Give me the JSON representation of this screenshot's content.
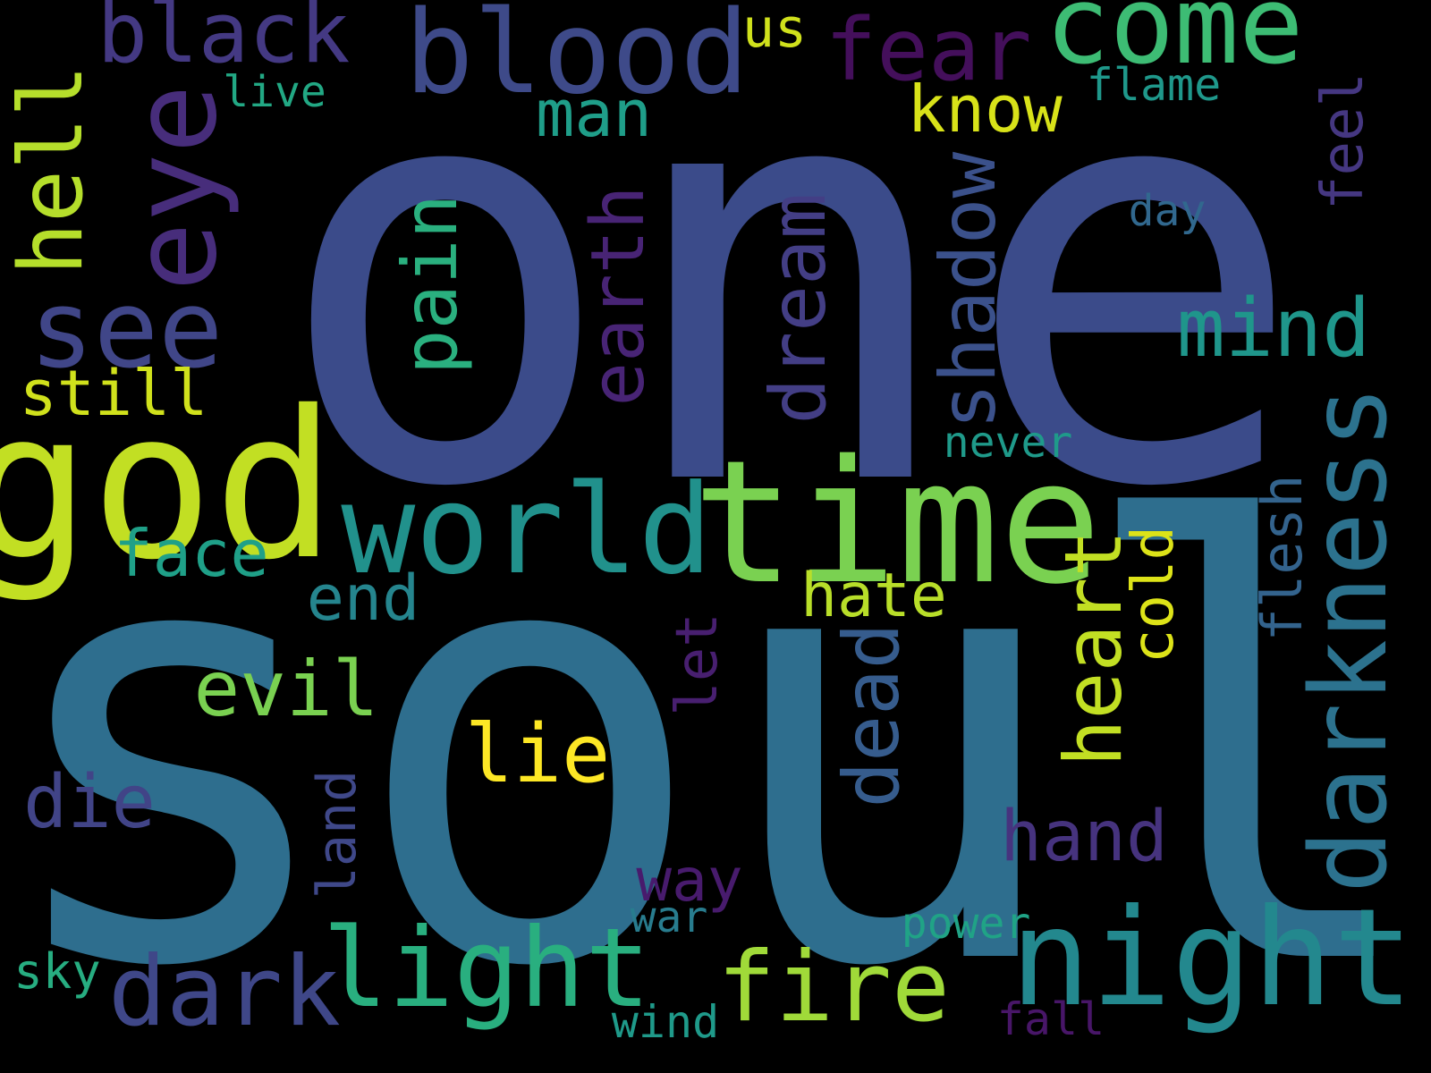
{
  "background_color": "#000000",
  "colormap": "viridis",
  "words": [
    {
      "id": "one",
      "text": "one",
      "color": "#3b4b8a",
      "vertical": false
    },
    {
      "id": "soul",
      "text": "soul",
      "color": "#2e6e8e",
      "vertical": false
    },
    {
      "id": "god",
      "text": "god",
      "color": "#c2df23",
      "vertical": false
    },
    {
      "id": "time",
      "text": "time",
      "color": "#7ad151",
      "vertical": false
    },
    {
      "id": "world",
      "text": "world",
      "color": "#21918c",
      "vertical": false
    },
    {
      "id": "night",
      "text": "night",
      "color": "#23888e",
      "vertical": false
    },
    {
      "id": "blood",
      "text": "blood",
      "color": "#3e4a89",
      "vertical": false
    },
    {
      "id": "come",
      "text": "come",
      "color": "#3dbc74",
      "vertical": false
    },
    {
      "id": "eye",
      "text": "eye",
      "color": "#472d7b",
      "vertical": true
    },
    {
      "id": "darkness",
      "text": "darkness",
      "color": "#2c728e",
      "vertical": true
    },
    {
      "id": "see",
      "text": "see",
      "color": "#404688",
      "vertical": false
    },
    {
      "id": "light",
      "text": "light",
      "color": "#29af7f",
      "vertical": false
    },
    {
      "id": "dark",
      "text": "dark",
      "color": "#3f4788",
      "vertical": false
    },
    {
      "id": "fire",
      "text": "fire",
      "color": "#a0da39",
      "vertical": false
    },
    {
      "id": "black",
      "text": "black",
      "color": "#443983",
      "vertical": false
    },
    {
      "id": "fear",
      "text": "fear",
      "color": "#440f5b",
      "vertical": false
    },
    {
      "id": "hell",
      "text": "hell",
      "color": "#b5de2b",
      "vertical": true
    },
    {
      "id": "mind",
      "text": "mind",
      "color": "#1f968b",
      "vertical": false
    },
    {
      "id": "heart",
      "text": "heart",
      "color": "#c2df23",
      "vertical": true
    },
    {
      "id": "dream",
      "text": "dream",
      "color": "#433e85",
      "vertical": true
    },
    {
      "id": "shadow",
      "text": "shadow",
      "color": "#3b518b",
      "vertical": true
    },
    {
      "id": "pain",
      "text": "pain",
      "color": "#2ab07f",
      "vertical": true
    },
    {
      "id": "earth",
      "text": "earth",
      "color": "#482475",
      "vertical": true
    },
    {
      "id": "dead",
      "text": "dead",
      "color": "#365c8d",
      "vertical": true
    },
    {
      "id": "lie",
      "text": "lie",
      "color": "#fde725",
      "vertical": false
    },
    {
      "id": "evil",
      "text": "evil",
      "color": "#7ad151",
      "vertical": false
    },
    {
      "id": "hand",
      "text": "hand",
      "color": "#46337e",
      "vertical": false
    },
    {
      "id": "die",
      "text": "die",
      "color": "#414487",
      "vertical": false
    },
    {
      "id": "face",
      "text": "face",
      "color": "#1fa088",
      "vertical": false
    },
    {
      "id": "man",
      "text": "man",
      "color": "#1f9e89",
      "vertical": false
    },
    {
      "id": "know",
      "text": "know",
      "color": "#d8e219",
      "vertical": false
    },
    {
      "id": "still",
      "text": "still",
      "color": "#d0e11c",
      "vertical": false
    },
    {
      "id": "end",
      "text": "end",
      "color": "#25858e",
      "vertical": false
    },
    {
      "id": "hate",
      "text": "hate",
      "color": "#b8de29",
      "vertical": false
    },
    {
      "id": "feel",
      "text": "feel",
      "color": "#453781",
      "vertical": true
    },
    {
      "id": "cold",
      "text": "cold",
      "color": "#dde318",
      "vertical": true
    },
    {
      "id": "flesh",
      "text": "flesh",
      "color": "#33638d",
      "vertical": true
    },
    {
      "id": "way",
      "text": "way",
      "color": "#481b6d",
      "vertical": false
    },
    {
      "id": "let",
      "text": "let",
      "color": "#481f70",
      "vertical": true
    },
    {
      "id": "land",
      "text": "land",
      "color": "#3f4889",
      "vertical": true
    },
    {
      "id": "us",
      "text": "us",
      "color": "#d0e11c",
      "vertical": false
    },
    {
      "id": "flame",
      "text": "flame",
      "color": "#1f988b",
      "vertical": false
    },
    {
      "id": "never",
      "text": "never",
      "color": "#1f9a8a",
      "vertical": false
    },
    {
      "id": "day",
      "text": "day",
      "color": "#31688e",
      "vertical": false
    },
    {
      "id": "live",
      "text": "live",
      "color": "#22a884",
      "vertical": false
    },
    {
      "id": "sky",
      "text": "sky",
      "color": "#27ad81",
      "vertical": false
    },
    {
      "id": "war",
      "text": "war",
      "color": "#287c8e",
      "vertical": false
    },
    {
      "id": "power",
      "text": "power",
      "color": "#20a386",
      "vertical": false
    },
    {
      "id": "wind",
      "text": "wind",
      "color": "#1f9a8a",
      "vertical": false
    },
    {
      "id": "fall",
      "text": "fall",
      "color": "#481668",
      "vertical": false
    }
  ]
}
